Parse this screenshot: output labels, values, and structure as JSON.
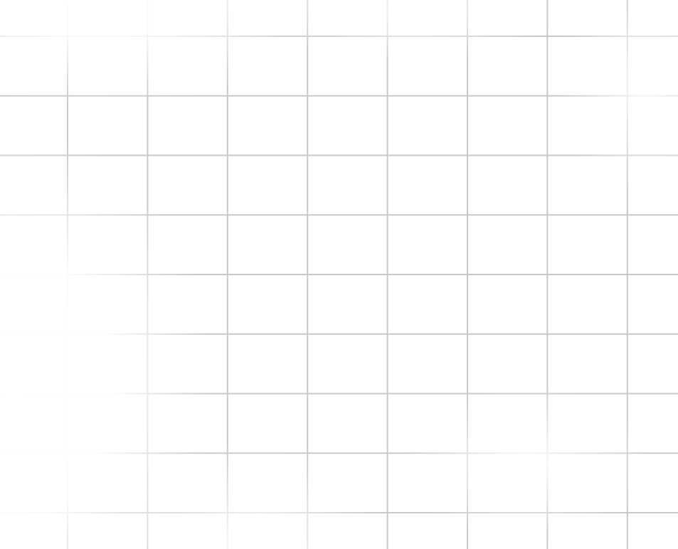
{
  "background": {
    "type": "grid-pattern",
    "line_color": "#c8c8c8",
    "background_color": "#ffffff"
  }
}
